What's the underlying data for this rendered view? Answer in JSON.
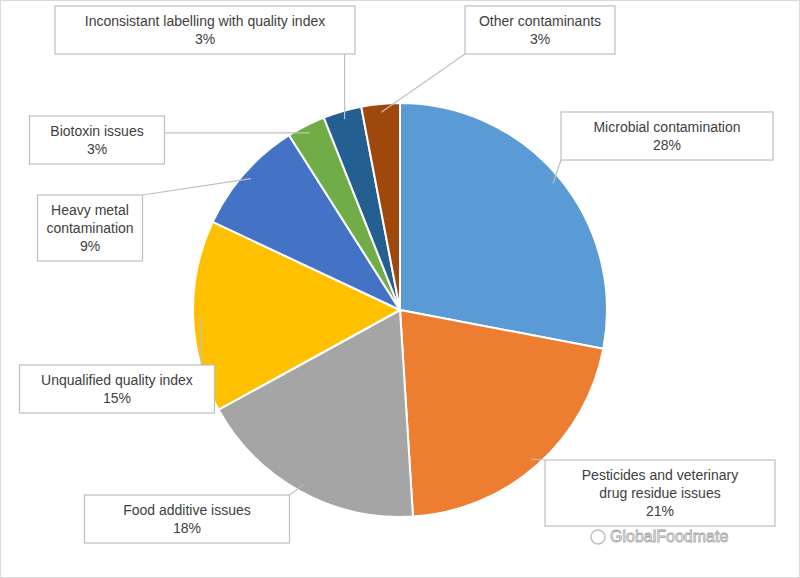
{
  "chart_data": {
    "type": "pie",
    "categories": [
      "Microbial contamination",
      "Pesticides and veterinary drug residue issues",
      "Food additive issues",
      "Unqualified quality index",
      "Heavy metal contamination",
      "Biotoxin issues",
      "Inconsistant labelling with quality index",
      "Other contaminants"
    ],
    "values": [
      28,
      21,
      18,
      15,
      9,
      3,
      3,
      3
    ],
    "value_labels": [
      "28%",
      "21%",
      "18%",
      "15%",
      "9%",
      "3%",
      "3%",
      "3%"
    ],
    "colors": [
      "#5b9bd5",
      "#ed7d31",
      "#a5a5a5",
      "#ffc000",
      "#4472c4",
      "#70ad47",
      "#255e91",
      "#9e480e"
    ],
    "data_labels": true,
    "annotations": [
      "GlobalFoodmate"
    ]
  }
}
